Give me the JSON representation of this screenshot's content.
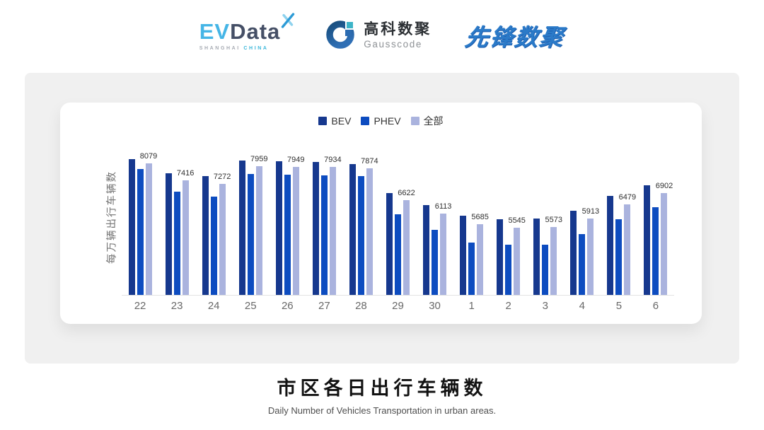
{
  "header": {
    "evdata": {
      "ev": "EV",
      "data": "Data",
      "sub_left": "SHANGHAI",
      "sub_right": "CHINA"
    },
    "gausscode": {
      "name_cn": "高科数聚",
      "name_en": "Gausscode"
    },
    "pioneer": {
      "name": "先锋数聚"
    }
  },
  "chart_data": {
    "type": "bar",
    "categories": [
      "22",
      "23",
      "24",
      "25",
      "26",
      "27",
      "28",
      "29",
      "30",
      "1",
      "2",
      "3",
      "4",
      "5",
      "6"
    ],
    "series": [
      {
        "name": "BEV",
        "color": "#16388e",
        "values": [
          8245,
          7690,
          7570,
          8180,
          8155,
          8145,
          8065,
          6925,
          6435,
          6030,
          5875,
          5910,
          6205,
          6790,
          7220
        ]
      },
      {
        "name": "PHEV",
        "color": "#0d4cc0",
        "values": [
          7870,
          6970,
          6760,
          7655,
          7635,
          7600,
          7575,
          6075,
          5475,
          4970,
          4880,
          4865,
          5300,
          5890,
          6355
        ]
      },
      {
        "name": "全部",
        "color": "#aab3de",
        "values": [
          8079,
          7416,
          7272,
          7959,
          7949,
          7934,
          7874,
          6622,
          6113,
          5685,
          5545,
          5573,
          5913,
          6479,
          6902
        ]
      }
    ],
    "value_labels": [
      "8079",
      "7416",
      "7272",
      "7959",
      "7949",
      "7934",
      "7874",
      "6622",
      "6113",
      "5685",
      "5545",
      "5573",
      "5913",
      "6479",
      "6902"
    ],
    "labeled_series": "全部",
    "ylabel": "每万辆出行车辆数",
    "xlabel": "",
    "title": "",
    "ylim": [
      2900,
      8500
    ],
    "legend_position": "top",
    "grid": false
  },
  "footer": {
    "title": "市区各日出行车辆数",
    "subtitle": "Daily Number of Vehicles Transportation in urban areas."
  }
}
